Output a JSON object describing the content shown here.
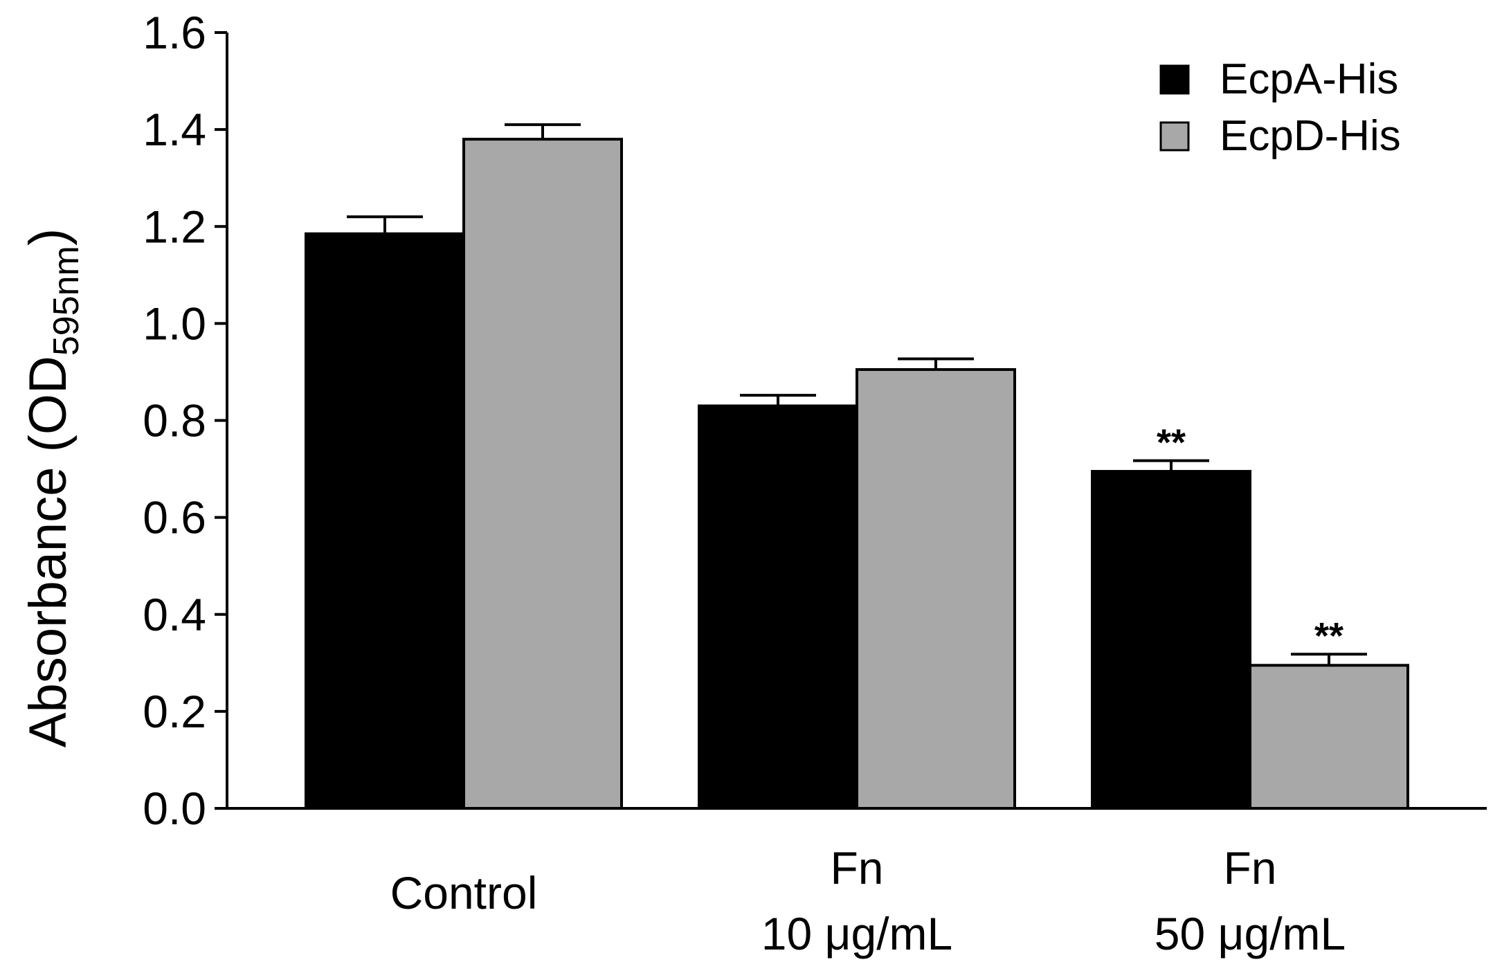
{
  "chart_data": {
    "type": "bar",
    "title": "",
    "xlabel": "",
    "ylabel": "Absorbance (OD",
    "ylabel_subscript": "595nm",
    "ylabel_close": ")",
    "ylim": [
      0,
      1.6
    ],
    "yticks": [
      "0.0",
      "0.2",
      "0.4",
      "0.6",
      "0.8",
      "1.0",
      "1.2",
      "1.4",
      "1.6"
    ],
    "categories": [
      {
        "lines": [
          "Control"
        ]
      },
      {
        "lines": [
          "Fn",
          "10 μg/mL"
        ]
      },
      {
        "lines": [
          "Fn",
          "50 μg/mL"
        ]
      }
    ],
    "series": [
      {
        "name": "EcpA-His",
        "color": "#000000",
        "values": [
          1.185,
          0.83,
          0.695
        ],
        "errors": [
          0.035,
          0.022,
          0.022
        ],
        "annotations": [
          "",
          "",
          "**"
        ]
      },
      {
        "name": "EcpD-His",
        "color": "#a8a8a8",
        "values": [
          1.38,
          0.905,
          0.295
        ],
        "errors": [
          0.03,
          0.022,
          0.023
        ],
        "annotations": [
          "",
          "",
          "**"
        ]
      }
    ],
    "legend_position": "top-right",
    "grid": false
  }
}
